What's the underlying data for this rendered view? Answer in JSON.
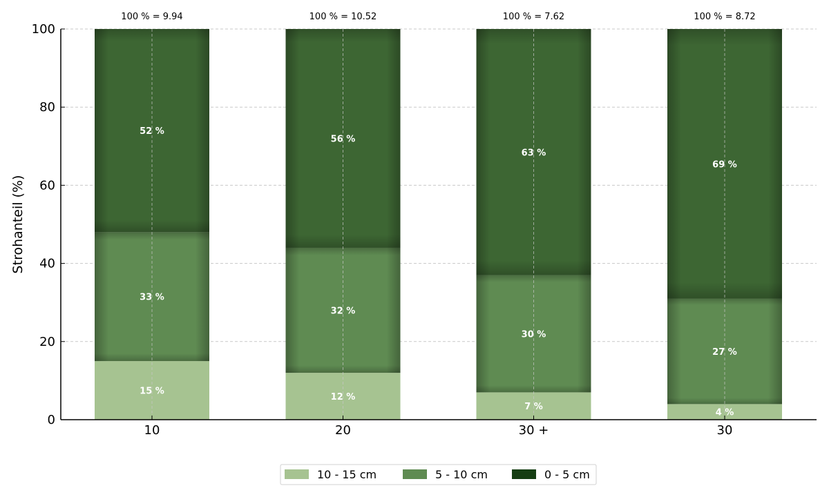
{
  "chart_data": {
    "type": "bar",
    "stacked": true,
    "categories": [
      "10",
      "20",
      "30 +",
      "30"
    ],
    "totals_text": [
      "100 % = 9.94",
      "100 % = 10.52",
      "100 % = 7.62",
      "100 % = 8.72"
    ],
    "series": [
      {
        "name": "10 - 15 cm",
        "color": "#a6c391",
        "values": [
          15,
          12,
          7,
          4
        ]
      },
      {
        "name": "5 - 10 cm",
        "color": "#5f8b52",
        "values": [
          33,
          32,
          30,
          27
        ]
      },
      {
        "name": "0 - 5 cm",
        "color": "#3d6633",
        "legend_color": "#153d12",
        "values": [
          52,
          56,
          63,
          69
        ]
      }
    ],
    "ylabel": "Strohanteil (%)",
    "xlabel": "",
    "ylim": [
      0,
      100
    ],
    "yticks": [
      0,
      20,
      40,
      60,
      80,
      100
    ],
    "grid": true,
    "legend_position": "bottom-center"
  }
}
